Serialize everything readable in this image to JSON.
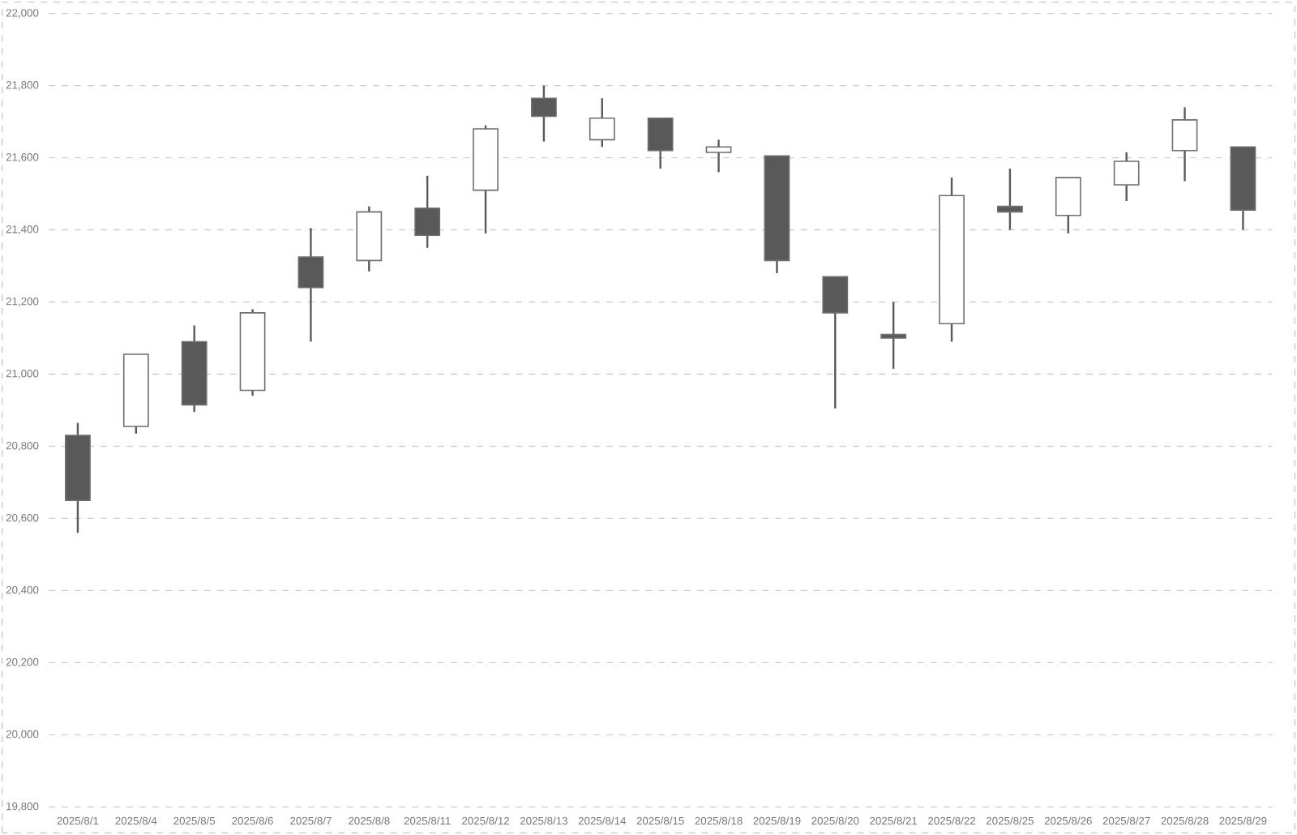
{
  "chart_data": {
    "type": "candlestick",
    "categories": [
      "2025/8/1",
      "2025/8/4",
      "2025/8/5",
      "2025/8/6",
      "2025/8/7",
      "2025/8/8",
      "2025/8/11",
      "2025/8/12",
      "2025/8/13",
      "2025/8/14",
      "2025/8/15",
      "2025/8/18",
      "2025/8/19",
      "2025/8/20",
      "2025/8/21",
      "2025/8/22",
      "2025/8/25",
      "2025/8/26",
      "2025/8/27",
      "2025/8/28",
      "2025/8/29"
    ],
    "ohlc": [
      [
        20830,
        20865,
        20560,
        20650
      ],
      [
        20855,
        21055,
        20835,
        21055
      ],
      [
        21090,
        21135,
        20895,
        20915
      ],
      [
        20955,
        21180,
        20940,
        21170
      ],
      [
        21325,
        21405,
        21090,
        21240
      ],
      [
        21315,
        21465,
        21285,
        21450
      ],
      [
        21460,
        21550,
        21350,
        21385
      ],
      [
        21510,
        21690,
        21390,
        21680
      ],
      [
        21765,
        21800,
        21645,
        21715
      ],
      [
        21650,
        21765,
        21630,
        21710
      ],
      [
        21710,
        21710,
        21570,
        21620
      ],
      [
        21615,
        21650,
        21560,
        21630
      ],
      [
        21605,
        21605,
        21280,
        21315
      ],
      [
        21270,
        21270,
        20905,
        21170
      ],
      [
        21110,
        21200,
        21015,
        21100
      ],
      [
        21140,
        21545,
        21090,
        21495
      ],
      [
        21465,
        21570,
        21400,
        21450
      ],
      [
        21440,
        21545,
        21390,
        21545
      ],
      [
        21525,
        21615,
        21480,
        21590
      ],
      [
        21620,
        21740,
        21535,
        21705
      ],
      [
        21630,
        21630,
        21400,
        21455
      ]
    ],
    "colors": [
      "#595959",
      "#ffffff",
      "#595959",
      "#ffffff",
      "#595959",
      "#ffffff",
      "#595959",
      "#ffffff",
      "#595959",
      "#ffffff",
      "#595959",
      "#ffffff",
      "#595959",
      "#595959",
      "#595959",
      "#ffffff",
      "#595959",
      "#ffffff",
      "#ffffff",
      "#ffffff",
      "#595959"
    ],
    "ylim": [
      19800,
      22000
    ],
    "yticks": [
      {
        "value": 19800,
        "label": "19,800"
      },
      {
        "value": 20000,
        "label": "20,000"
      },
      {
        "value": 20200,
        "label": "20,200"
      },
      {
        "value": 20400,
        "label": "20,400"
      },
      {
        "value": 20600,
        "label": "20,600"
      },
      {
        "value": 20800,
        "label": "20,800"
      },
      {
        "value": 21000,
        "label": "21,000"
      },
      {
        "value": 21200,
        "label": "21,200"
      },
      {
        "value": 21400,
        "label": "21,400"
      },
      {
        "value": 21600,
        "label": "21,600"
      },
      {
        "value": 21800,
        "label": "21,800"
      },
      {
        "value": 22000,
        "label": "22,000"
      }
    ],
    "grid": "y"
  }
}
